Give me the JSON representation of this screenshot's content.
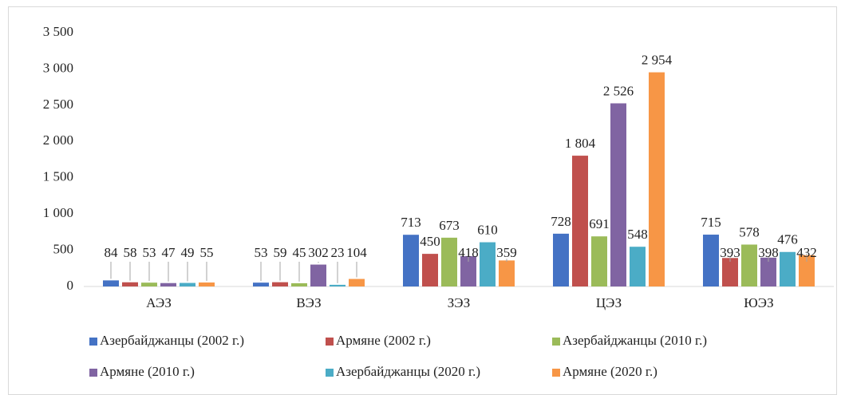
{
  "chart_data": {
    "type": "bar",
    "categories": [
      "АЭЗ",
      "ВЭЗ",
      "ЗЭЗ",
      "ЦЭЗ",
      "ЮЭЗ"
    ],
    "series": [
      {
        "name": "Азербайджанцы (2002 г.)",
        "color": "#4472c4",
        "values": [
          84,
          53,
          713,
          728,
          715
        ]
      },
      {
        "name": "Армяне (2002 г.)",
        "color": "#c0504d",
        "values": [
          58,
          59,
          450,
          1804,
          393
        ],
        "value_labels": [
          "58",
          "59",
          "450",
          "1 804",
          "393"
        ]
      },
      {
        "name": "Азербайджанцы (2010 г.)",
        "color": "#9bbb59",
        "values": [
          53,
          45,
          673,
          691,
          578
        ]
      },
      {
        "name": "Армяне (2010 г.)",
        "color": "#8064a2",
        "values": [
          47,
          302,
          418,
          2526,
          398
        ],
        "value_labels": [
          "47",
          "302",
          "418",
          "2 526",
          "398"
        ]
      },
      {
        "name": "Азербайджанцы (2020 г.)",
        "color": "#4bacc6",
        "values": [
          49,
          23,
          610,
          548,
          476
        ]
      },
      {
        "name": "Армяне (2020 г.)",
        "color": "#f79646",
        "values": [
          55,
          104,
          359,
          2954,
          432
        ],
        "value_labels": [
          "55",
          "104",
          "359",
          "2 954",
          "432"
        ]
      }
    ],
    "ylim": [
      0,
      3500
    ],
    "yticks": [
      0,
      500,
      {
        "value": 1000,
        "label": "1 000"
      },
      {
        "value": 1500,
        "label": "1 500"
      },
      {
        "value": 2000,
        "label": "2 000"
      },
      {
        "value": 2500,
        "label": "2 500"
      },
      {
        "value": 3000,
        "label": "3 000"
      },
      {
        "value": 3500,
        "label": "3 500"
      }
    ],
    "legend": "bottom"
  }
}
